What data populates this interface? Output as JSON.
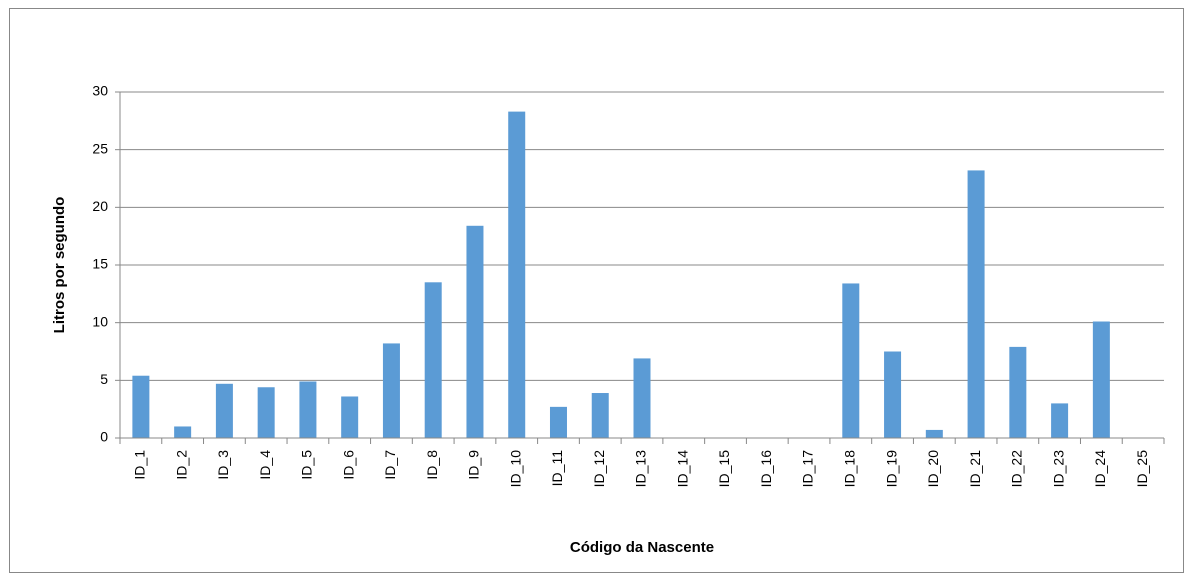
{
  "chart_data": {
    "type": "bar",
    "y_label": "Litros por segundo",
    "x_label": "Código da Nascente",
    "categories": [
      "ID_1",
      "ID_2",
      "ID_3",
      "ID_4",
      "ID_5",
      "ID_6",
      "ID_7",
      "ID_8",
      "ID_9",
      "ID_10",
      "ID_11",
      "ID_12",
      "ID_13",
      "ID_14",
      "ID_15",
      "ID_16",
      "ID_17",
      "ID_18",
      "ID_19",
      "ID_20",
      "ID_21",
      "ID_22",
      "ID_23",
      "ID_24",
      "ID_25"
    ],
    "values": [
      5.4,
      1.0,
      4.7,
      4.4,
      4.9,
      3.6,
      8.2,
      13.5,
      18.4,
      28.3,
      2.7,
      3.9,
      6.9,
      0,
      0,
      0,
      0,
      13.4,
      7.5,
      0.7,
      23.2,
      7.9,
      3.0,
      10.1,
      0
    ],
    "color": "#5b9bd5",
    "ylim": [
      0,
      30
    ],
    "yticks": [
      0,
      5,
      10,
      15,
      20,
      25,
      30
    ],
    "grid": true
  }
}
